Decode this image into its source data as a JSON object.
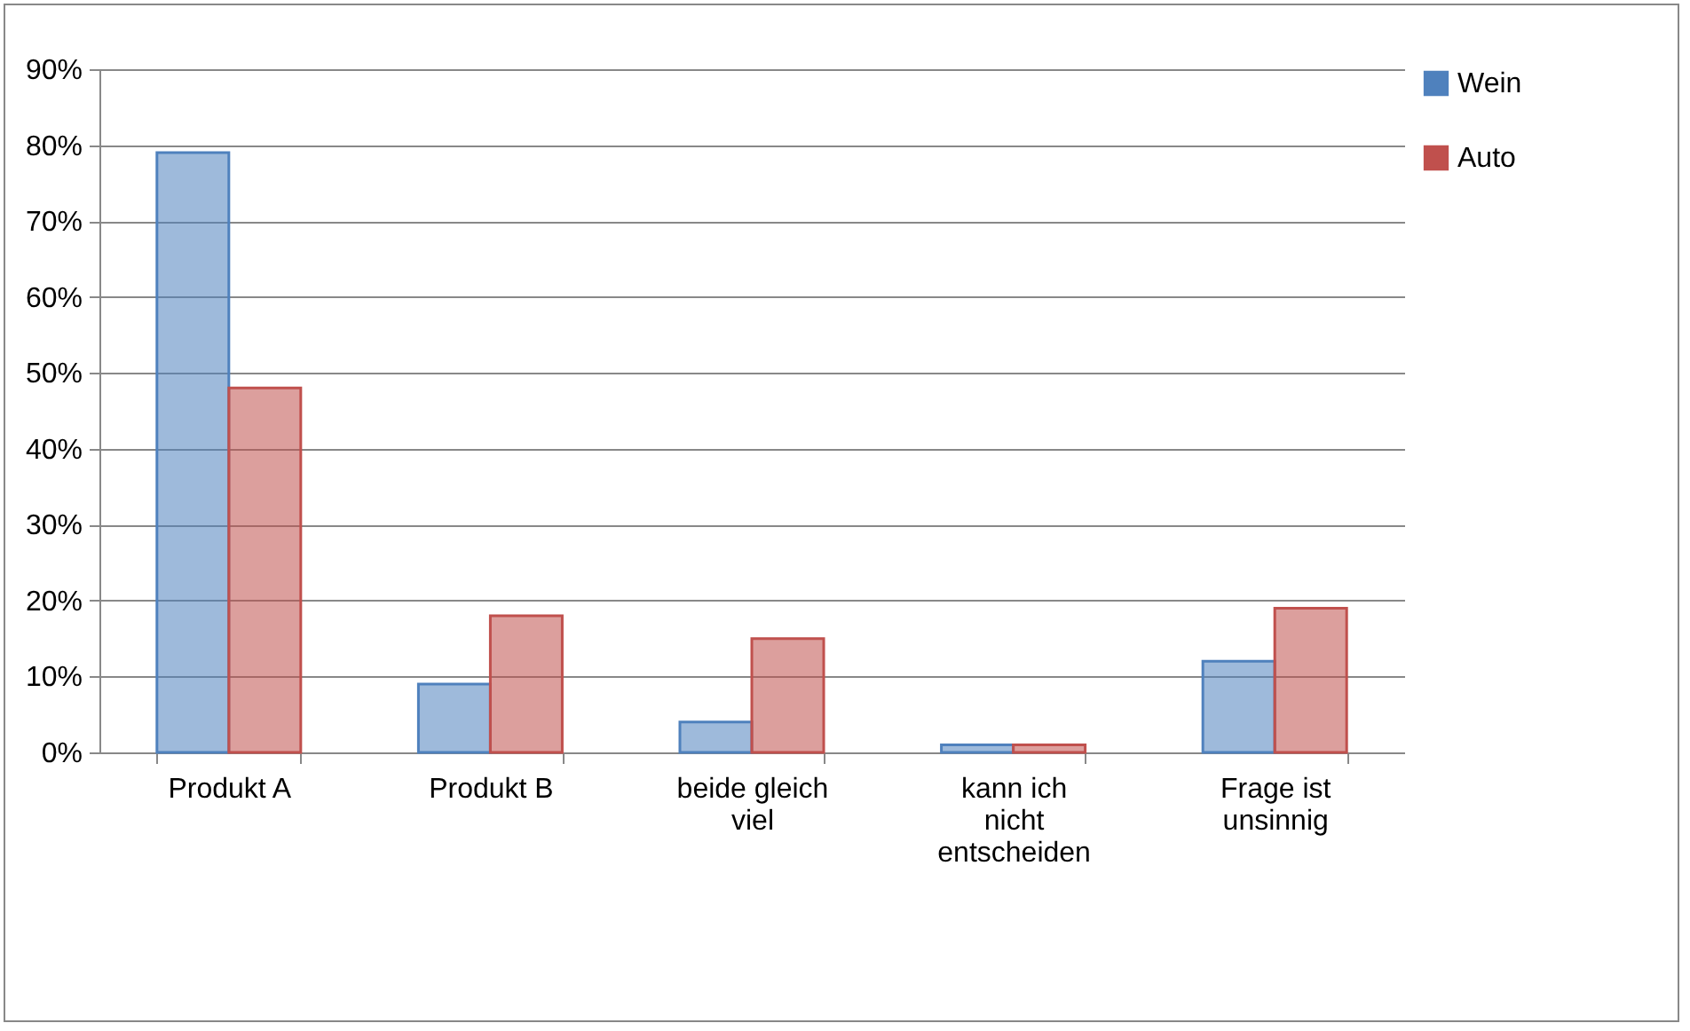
{
  "chart_data": {
    "type": "bar",
    "categories": [
      "Produkt A",
      "Produkt B",
      "beide gleich viel",
      "kann ich nicht entscheiden",
      "Frage ist unsinnig"
    ],
    "series": [
      {
        "name": "Wein",
        "color": "#4f81bd",
        "values": [
          79,
          9,
          4,
          1,
          12
        ]
      },
      {
        "name": "Auto",
        "color": "#c0504d",
        "values": [
          48,
          18,
          15,
          1,
          19
        ]
      }
    ],
    "ylim": [
      0,
      90
    ],
    "yticks": [
      {
        "value": 0,
        "label": "0%"
      },
      {
        "value": 10,
        "label": "10%"
      },
      {
        "value": 20,
        "label": "20%"
      },
      {
        "value": 30,
        "label": "30%"
      },
      {
        "value": 40,
        "label": "40%"
      },
      {
        "value": 50,
        "label": "50%"
      },
      {
        "value": 60,
        "label": "60%"
      },
      {
        "value": 70,
        "label": "70%"
      },
      {
        "value": 80,
        "label": "80%"
      },
      {
        "value": 90,
        "label": "90%"
      }
    ],
    "grid": "y",
    "legend": "right"
  }
}
